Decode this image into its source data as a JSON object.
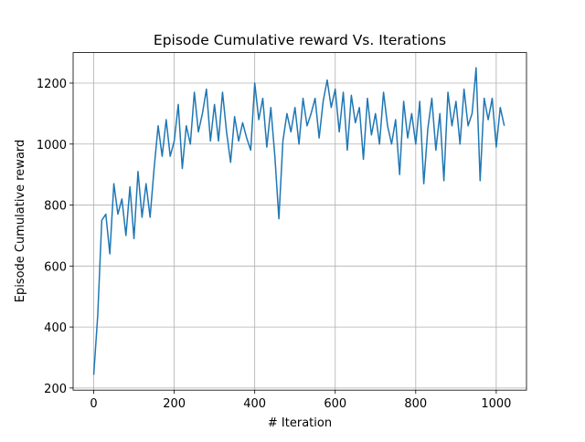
{
  "chart_data": {
    "type": "line",
    "title": "Episode Cumulative reward Vs. Iterations",
    "xlabel": "# Iteration",
    "ylabel": "Episode Cumulative reward",
    "grid": true,
    "xlim": [
      -51.2,
      1075.2
    ],
    "ylim": [
      193,
      1300
    ],
    "xticks": [
      0,
      200,
      400,
      600,
      800,
      1000
    ],
    "yticks": [
      200,
      400,
      600,
      800,
      1000,
      1200
    ],
    "x": [
      0,
      10,
      20,
      30,
      40,
      50,
      60,
      70,
      80,
      90,
      100,
      110,
      120,
      130,
      140,
      150,
      160,
      170,
      180,
      190,
      200,
      210,
      220,
      230,
      240,
      250,
      260,
      270,
      280,
      290,
      300,
      310,
      320,
      330,
      340,
      350,
      360,
      370,
      380,
      390,
      400,
      410,
      420,
      430,
      440,
      450,
      460,
      470,
      480,
      490,
      500,
      510,
      520,
      530,
      540,
      550,
      560,
      570,
      580,
      590,
      600,
      610,
      620,
      630,
      640,
      650,
      660,
      670,
      680,
      690,
      700,
      710,
      720,
      730,
      740,
      750,
      760,
      770,
      780,
      790,
      800,
      810,
      820,
      830,
      840,
      850,
      860,
      870,
      880,
      890,
      900,
      910,
      920,
      930,
      940,
      950,
      960,
      970,
      980,
      990,
      1000,
      1010,
      1020
    ],
    "series": [
      {
        "color": "#1f77b4",
        "values": [
          243,
          440,
          750,
          770,
          640,
          870,
          770,
          820,
          700,
          860,
          690,
          910,
          760,
          870,
          760,
          920,
          1060,
          960,
          1080,
          960,
          1010,
          1130,
          920,
          1060,
          1000,
          1170,
          1040,
          1100,
          1180,
          1010,
          1130,
          1010,
          1170,
          1040,
          940,
          1090,
          1010,
          1070,
          1020,
          980,
          1200,
          1080,
          1150,
          990,
          1120,
          960,
          755,
          1010,
          1100,
          1040,
          1120,
          1000,
          1150,
          1060,
          1100,
          1150,
          1020,
          1140,
          1210,
          1120,
          1180,
          1040,
          1170,
          980,
          1160,
          1070,
          1120,
          950,
          1150,
          1030,
          1100,
          1000,
          1170,
          1060,
          1000,
          1080,
          900,
          1140,
          1020,
          1100,
          1000,
          1140,
          870,
          1050,
          1150,
          980,
          1100,
          880,
          1170,
          1060,
          1140,
          1000,
          1180,
          1060,
          1100,
          1250,
          880,
          1150,
          1080,
          1150,
          990,
          1120,
          1060
        ]
      }
    ]
  }
}
